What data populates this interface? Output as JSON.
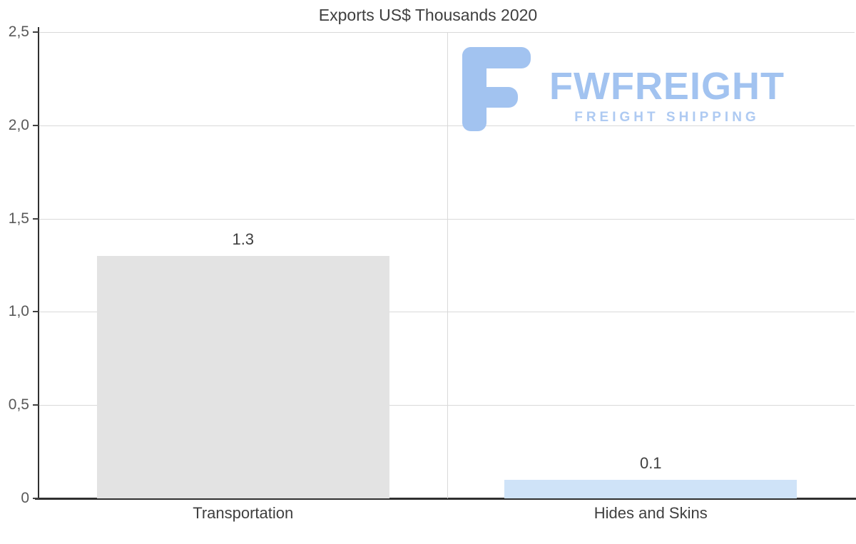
{
  "watermark": {
    "brand": "FWFREIGHT",
    "tagline": "FREIGHT SHIPPING",
    "color": "#a2c3f0"
  },
  "chart_data": {
    "type": "bar",
    "title": "Exports US$ Thousands 2020",
    "categories": [
      "Transportation",
      "Hides and Skins"
    ],
    "values": [
      1.3,
      0.1
    ],
    "value_labels": [
      "1.3",
      "0.1"
    ],
    "bar_colors": [
      "#e3e3e3",
      "#cfe3f8"
    ],
    "xlabel": "",
    "ylabel": "",
    "ylim": [
      0,
      2.5
    ],
    "yticks": [
      0,
      0.5,
      1.0,
      1.5,
      2.0,
      2.5
    ],
    "ytick_labels": [
      "0",
      "0,5",
      "1,0",
      "1,5",
      "2,0",
      "2,5"
    ],
    "grid": true,
    "legend": "none"
  }
}
